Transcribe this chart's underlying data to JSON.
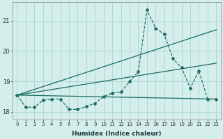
{
  "xlabel": "Humidex (Indice chaleur)",
  "background_color": "#d4eeec",
  "grid_color": "#aed8d5",
  "line_color": "#1a6b60",
  "x_values": [
    0,
    1,
    2,
    3,
    4,
    5,
    6,
    7,
    8,
    9,
    10,
    11,
    12,
    13,
    14,
    15,
    16,
    17,
    18,
    19,
    20,
    21,
    22,
    23
  ],
  "y_main": [
    18.55,
    18.15,
    18.15,
    18.38,
    18.42,
    18.42,
    18.08,
    18.08,
    18.18,
    18.28,
    18.5,
    18.62,
    18.65,
    19.0,
    19.32,
    21.35,
    20.75,
    20.55,
    19.75,
    19.45,
    18.78,
    19.35,
    18.42,
    18.42
  ],
  "ylim": [
    17.75,
    21.6
  ],
  "yticks": [
    18,
    19,
    20,
    21
  ],
  "xlim": [
    -0.5,
    23.5
  ],
  "xticks": [
    0,
    1,
    2,
    3,
    4,
    5,
    6,
    7,
    8,
    9,
    10,
    11,
    12,
    13,
    14,
    15,
    16,
    17,
    18,
    19,
    20,
    21,
    22,
    23
  ],
  "trend1_x": [
    0,
    23
  ],
  "trend1_y": [
    18.55,
    18.42
  ],
  "trend2_x": [
    0,
    23
  ],
  "trend2_y": [
    18.55,
    19.6
  ],
  "trend3_x": [
    0,
    23
  ],
  "trend3_y": [
    18.55,
    20.7
  ]
}
